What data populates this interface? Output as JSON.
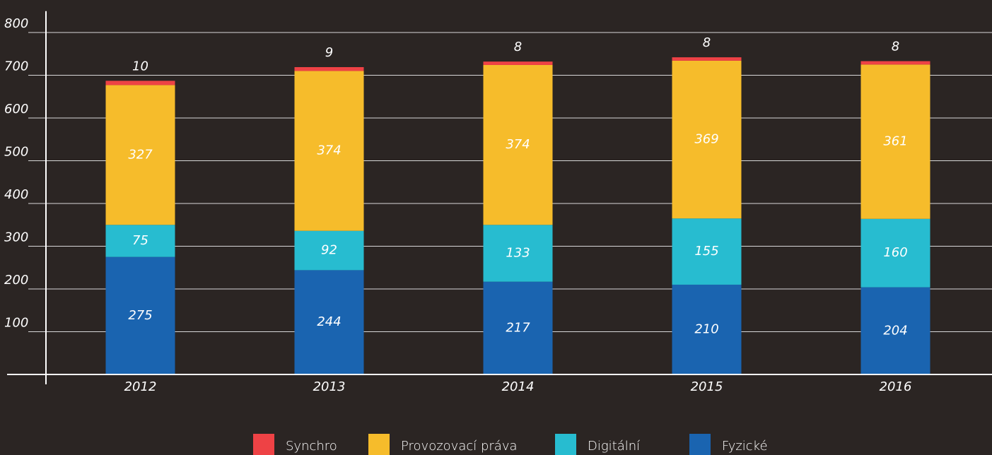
{
  "chart_data": {
    "type": "stacked_bar",
    "categories": [
      "2012",
      "2013",
      "2014",
      "2015",
      "2016"
    ],
    "series": [
      {
        "name": "Fyzické",
        "color": "#1a64b0",
        "values": [
          275,
          244,
          217,
          210,
          204
        ]
      },
      {
        "name": "Digitální",
        "color": "#27bcd0",
        "values": [
          75,
          92,
          133,
          155,
          160
        ]
      },
      {
        "name": "Provozovací práva",
        "color": "#f6bc2b",
        "values": [
          327,
          374,
          374,
          369,
          361
        ]
      },
      {
        "name": "Synchro",
        "color": "#ee4245",
        "values": [
          10,
          9,
          8,
          8,
          8
        ]
      }
    ],
    "ylim": [
      0,
      850
    ],
    "yticks": [
      100,
      200,
      300,
      400,
      500,
      600,
      700,
      800
    ],
    "grid": true,
    "legend": "bottom"
  }
}
